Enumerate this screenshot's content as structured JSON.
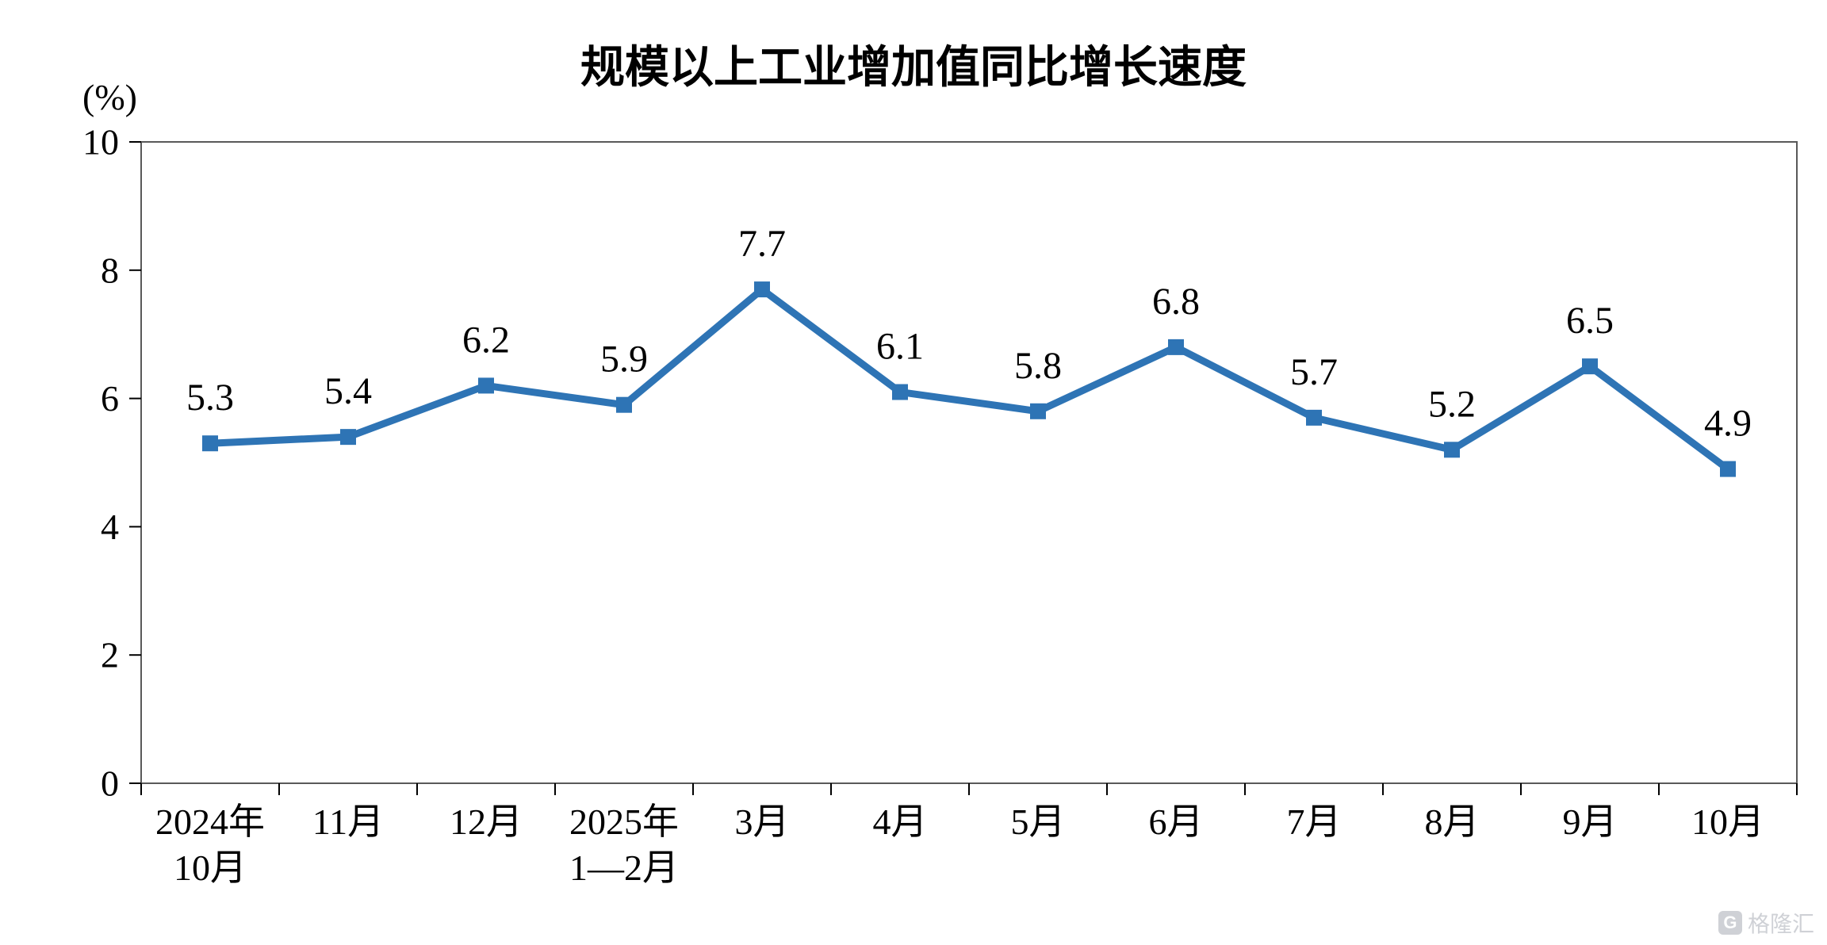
{
  "chart_data": {
    "type": "line",
    "title": "规模以上工业增加值同比增长速度",
    "ylabel": "(%)",
    "ylim": [
      0,
      10
    ],
    "yticks": [
      0,
      2,
      4,
      6,
      8,
      10
    ],
    "categories": [
      "2024年\n10月",
      "11月",
      "12月",
      "2025年\n1—2月",
      "3月",
      "4月",
      "5月",
      "6月",
      "7月",
      "8月",
      "9月",
      "10月"
    ],
    "values": [
      5.3,
      5.4,
      6.2,
      5.9,
      7.7,
      6.1,
      5.8,
      6.8,
      5.7,
      5.2,
      6.5,
      4.9
    ],
    "line_color": "#2E74B5",
    "axis_color": "#000000",
    "border_color": "#595959",
    "grid": false,
    "legend": "none"
  },
  "watermark": {
    "text": "格隆汇",
    "logo_letter": "G"
  }
}
